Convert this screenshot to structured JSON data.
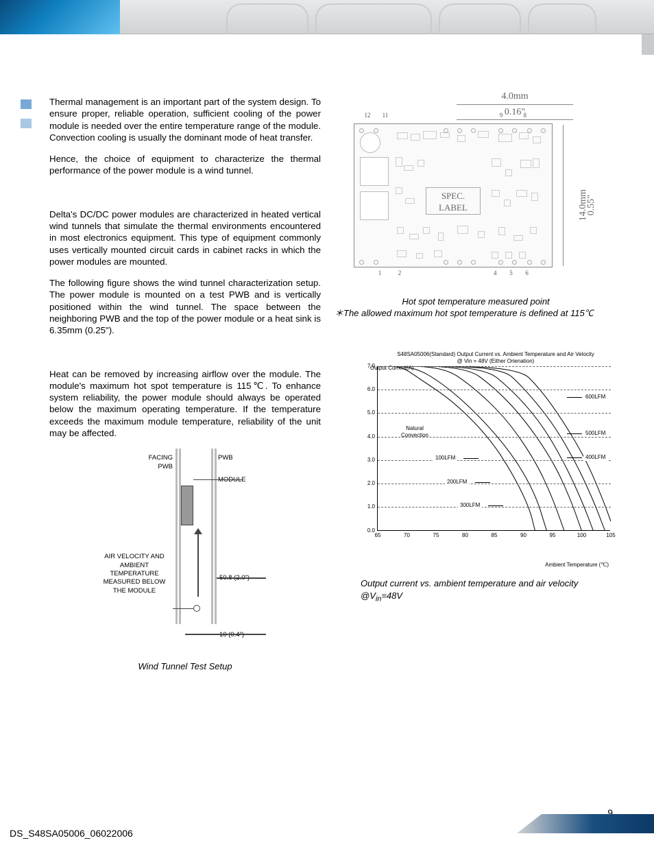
{
  "paragraphs": {
    "p1": "Thermal management is an important part of the system design. To ensure proper, reliable operation, sufficient cooling of the power module is needed over the entire temperature range of the module. Convection cooling is usually the dominant mode of heat transfer.",
    "p2": "Hence, the choice of equipment to characterize the thermal performance of the power module is a wind tunnel.",
    "p3": "Delta's DC/DC power modules are characterized in heated vertical wind tunnels that simulate the thermal environments encountered in most electronics equipment. This type of equipment commonly uses vertically mounted circuit cards in cabinet racks in which the power modules are mounted.",
    "p4": "The following figure shows the wind tunnel characterization setup. The power module is mounted on a test PWB and is vertically positioned within the wind tunnel. The space between the neighboring PWB and the top of the power module or a heat sink is 6.35mm (0.25\").",
    "p5": "Heat can be removed by increasing airflow over the module. The module's maximum hot spot temperature is 115℃. To enhance system reliability, the power module should always be operated below the maximum operating temperature. If the temperature exceeds the maximum module temperature, reliability of the unit may be affected."
  },
  "wind_tunnel": {
    "facing_pwb": "FACING PWB",
    "pwb": "PWB",
    "module": "MODULE",
    "air_label": "AIR VELOCITY AND AMBIENT TEMPERATURE MEASURED BELOW THE MODULE",
    "dim1": "50.8 (2.0\")",
    "dim2": "10 (0.4\")",
    "caption": "Wind Tunnel Test Setup"
  },
  "hotspot": {
    "line1": "Hot spot temperature measured point",
    "line2_prefix": "＊",
    "line2": "The allowed maximum hot spot temperature is defined at 115℃"
  },
  "pcb": {
    "dim_top_mm": "4.0mm",
    "dim_top_in": "0.16\"",
    "dim_right_mm": "14.0mm",
    "dim_right_in": "0.55\"",
    "spec_label_l1": "SPEC.",
    "spec_label_l2": "LABEL",
    "pins_top": {
      "12": 12,
      "11": 11,
      "9": 9,
      "8": 8
    },
    "pins_top_pos": {
      "12": 5,
      "11": 14,
      "9": 73,
      "8": 85
    },
    "pins_bot": {
      "1": 12,
      "2": 22,
      "4": 70,
      "5": 78,
      "6": 86
    },
    "pins_bot_labels": {
      "1": 1,
      "2": 2,
      "4": 4,
      "5": 5,
      "6": 6
    }
  },
  "chart": {
    "title_l1": "S48SA05006(Standard) Output Current vs. Ambient Temperature and Air Velocity",
    "title_l2": "@ Vin = 48V (Either Orienation)",
    "ylabel": "Output Current(A)",
    "ylim": [
      0.0,
      7.0
    ],
    "yticks": [
      "0.0",
      "1.0",
      "2.0",
      "3.0",
      "4.0",
      "5.0",
      "6.0",
      "7.0"
    ],
    "xlim": [
      65,
      105
    ],
    "xticks": [
      65,
      70,
      75,
      80,
      85,
      90,
      95,
      100,
      105
    ],
    "xaxis_label": "Ambient Temperature (℃)",
    "grid_color": "#666666",
    "background_color": "#ffffff",
    "line_color": "#000000",
    "series": [
      {
        "label": "Natural Convection",
        "label_short": "Natural\nConvection",
        "points": [
          [
            65,
            7.0
          ],
          [
            69,
            7.0
          ],
          [
            72,
            6.5
          ],
          [
            78,
            5.5
          ],
          [
            84,
            4.0
          ],
          [
            88,
            2.5
          ],
          [
            91,
            1.0
          ],
          [
            92,
            0.0
          ]
        ]
      },
      {
        "label": "100LFM",
        "points": [
          [
            65,
            7.0
          ],
          [
            71,
            7.0
          ],
          [
            76,
            6.3
          ],
          [
            82,
            5.0
          ],
          [
            88,
            3.3
          ],
          [
            92,
            1.6
          ],
          [
            94,
            0.0
          ]
        ]
      },
      {
        "label": "200LFM",
        "points": [
          [
            65,
            7.0
          ],
          [
            76,
            7.0
          ],
          [
            81,
            6.2
          ],
          [
            87,
            4.8
          ],
          [
            92,
            3.0
          ],
          [
            95,
            1.4
          ],
          [
            97,
            0.0
          ]
        ]
      },
      {
        "label": "300LFM",
        "points": [
          [
            65,
            7.0
          ],
          [
            80,
            7.0
          ],
          [
            85,
            6.1
          ],
          [
            90,
            4.8
          ],
          [
            95,
            3.0
          ],
          [
            98,
            1.4
          ],
          [
            100,
            0.0
          ]
        ]
      },
      {
        "label": "400LFM",
        "points": [
          [
            65,
            7.0
          ],
          [
            83,
            7.0
          ],
          [
            88,
            6.0
          ],
          [
            93,
            4.6
          ],
          [
            97,
            2.9
          ],
          [
            100,
            1.3
          ],
          [
            102,
            0.0
          ]
        ]
      },
      {
        "label": "500LFM",
        "points": [
          [
            65,
            7.0
          ],
          [
            86,
            7.0
          ],
          [
            90,
            6.1
          ],
          [
            95,
            4.6
          ],
          [
            99,
            2.9
          ],
          [
            102,
            1.3
          ],
          [
            104,
            0.0
          ]
        ]
      },
      {
        "label": "600LFM",
        "points": [
          [
            65,
            7.0
          ],
          [
            89,
            7.0
          ],
          [
            93,
            6.0
          ],
          [
            97,
            4.6
          ],
          [
            101,
            2.9
          ],
          [
            104,
            1.1
          ],
          [
            105,
            0.4
          ]
        ]
      }
    ],
    "series_label_positions": {
      "100LFM": {
        "x": 81,
        "y": 129
      },
      "200LFM": {
        "x": 98,
        "y": 164
      },
      "300LFM": {
        "x": 117,
        "y": 198
      },
      "400LFM": {
        "x": 300,
        "y": 128
      },
      "500LFM": {
        "x": 300,
        "y": 93
      },
      "600LFM": {
        "x": 300,
        "y": 40
      }
    },
    "caption_prefix": "Output current vs. ambient temperature and air velocity",
    "caption_at": "@V",
    "caption_sub": "in",
    "caption_suffix": "=48V"
  },
  "footer": {
    "page": "9",
    "doc_id": "DS_S48SA05006_06022006"
  },
  "colors": {
    "header_gray_top": "#e8e9ea",
    "header_gray_bot": "#d0d2d4",
    "header_blue": "#0a4a7a",
    "footer_blue": "#1a4e80",
    "sidebar_mark1": "#7aa8d4",
    "sidebar_mark2": "#a8c8e4",
    "text": "#000000",
    "pcb_border": "#888888"
  }
}
